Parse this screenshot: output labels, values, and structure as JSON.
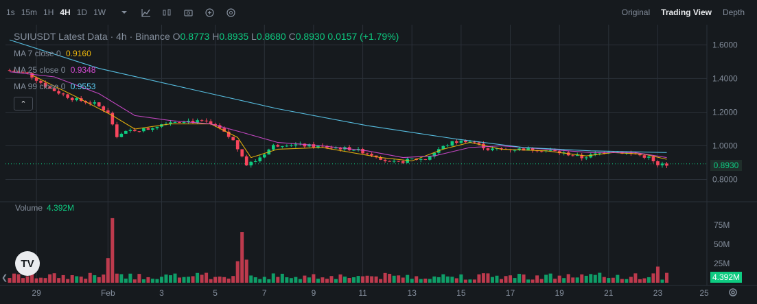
{
  "toolbar": {
    "timeframes": [
      "1s",
      "15m",
      "1H",
      "4H",
      "1D",
      "1W"
    ],
    "active_timeframe": "4H",
    "icons": [
      "chevron-down-icon",
      "indicators-icon",
      "bar-chart-icon",
      "camera-icon",
      "plus-circle-icon",
      "settings-icon"
    ]
  },
  "view_tabs": {
    "original": "Original",
    "trading_view": "Trading View",
    "depth": "Depth",
    "active": "Trading View"
  },
  "legend": {
    "title": "SUIUSDT Latest Data · 4h · Binance",
    "ohlc": [
      {
        "k": "O",
        "v": "0.8773"
      },
      {
        "k": "H",
        "v": "0.8935"
      },
      {
        "k": "L",
        "v": "0.8680"
      },
      {
        "k": "C",
        "v": "0.8930"
      },
      {
        "k": "",
        "v": "0.0157 (+1.79%)"
      }
    ],
    "ma": [
      {
        "label": "MA 7 close 0",
        "value": "0.9160",
        "color": "#f0b90b"
      },
      {
        "label": "MA 25 close 0",
        "value": "0.9348",
        "color": "#d54bd3"
      },
      {
        "label": "MA 99 close 0",
        "value": "0.9553",
        "color": "#5ed0f6"
      }
    ],
    "collapse_glyph": "⌃"
  },
  "volume_legend": {
    "label": "Volume",
    "value": "4.392M"
  },
  "price_tag": "0.8930",
  "volume_tag": "4.392M",
  "colors": {
    "up": "#0ecb81",
    "down": "#f6465d",
    "bg": "#161a1e",
    "grid": "#2b3139"
  },
  "chart_data": {
    "type": "candlestick",
    "symbol": "SUIUSDT",
    "interval": "4h",
    "exchange": "Binance",
    "price_axis": {
      "labels": [
        "1.6000",
        "1.4000",
        "1.2000",
        "1.0000",
        "0.8000"
      ],
      "range": [
        0.7,
        1.72
      ],
      "current": 0.893
    },
    "volume_axis": {
      "labels": [
        "75M",
        "50M",
        "25M"
      ],
      "range": [
        0,
        100
      ]
    },
    "x_labels": [
      "29",
      "Feb",
      "3",
      "5",
      "7",
      "9",
      "11",
      "13",
      "15",
      "17",
      "19",
      "21",
      "23",
      "25"
    ],
    "price_path": [
      [
        0,
        1.45
      ],
      [
        5,
        1.43
      ],
      [
        10,
        1.34
      ],
      [
        15,
        1.28
      ],
      [
        20,
        1.25
      ],
      [
        23,
        1.2
      ],
      [
        25,
        1.06
      ],
      [
        28,
        1.09
      ],
      [
        32,
        1.1
      ],
      [
        36,
        1.14
      ],
      [
        40,
        1.15
      ],
      [
        45,
        1.14
      ],
      [
        48,
        1.1
      ],
      [
        51,
        1.03
      ],
      [
        54,
        0.89
      ],
      [
        56,
        0.91
      ],
      [
        60,
        1.0
      ],
      [
        63,
        1.01
      ],
      [
        68,
        1.0
      ],
      [
        73,
        0.99
      ],
      [
        78,
        0.98
      ],
      [
        83,
        0.94
      ],
      [
        86,
        0.9
      ],
      [
        88,
        0.9
      ],
      [
        91,
        0.92
      ],
      [
        94,
        0.92
      ],
      [
        97,
        0.98
      ],
      [
        100,
        1.02
      ],
      [
        103,
        1.03
      ],
      [
        105,
        1.02
      ],
      [
        108,
        0.98
      ],
      [
        113,
        0.98
      ],
      [
        118,
        0.98
      ],
      [
        122,
        0.97
      ],
      [
        126,
        0.95
      ],
      [
        129,
        0.93
      ],
      [
        132,
        0.95
      ],
      [
        135,
        0.97
      ],
      [
        138,
        0.96
      ],
      [
        141,
        0.95
      ],
      [
        144,
        0.93
      ],
      [
        146,
        0.88
      ],
      [
        147,
        0.89
      ]
    ],
    "ma_series": [
      {
        "name": "MA 7",
        "color": "#f0b90b",
        "points": [
          [
            5,
            1.42
          ],
          [
            15,
            1.29
          ],
          [
            23,
            1.18
          ],
          [
            28,
            1.1
          ],
          [
            36,
            1.13
          ],
          [
            45,
            1.13
          ],
          [
            51,
            1.05
          ],
          [
            54,
            0.93
          ],
          [
            60,
            0.98
          ],
          [
            70,
            0.99
          ],
          [
            83,
            0.93
          ],
          [
            90,
            0.91
          ],
          [
            97,
            0.98
          ],
          [
            103,
            1.02
          ],
          [
            110,
            0.98
          ],
          [
            120,
            0.97
          ],
          [
            129,
            0.94
          ],
          [
            135,
            0.96
          ],
          [
            142,
            0.95
          ],
          [
            147,
            0.92
          ]
        ]
      },
      {
        "name": "MA 25",
        "color": "#d54bd3",
        "points": [
          [
            0,
            1.44
          ],
          [
            10,
            1.41
          ],
          [
            20,
            1.31
          ],
          [
            28,
            1.18
          ],
          [
            36,
            1.15
          ],
          [
            45,
            1.13
          ],
          [
            52,
            1.08
          ],
          [
            60,
            1.02
          ],
          [
            70,
            1.0
          ],
          [
            80,
            0.97
          ],
          [
            88,
            0.93
          ],
          [
            95,
            0.94
          ],
          [
            103,
            0.99
          ],
          [
            110,
            1.0
          ],
          [
            120,
            0.98
          ],
          [
            130,
            0.96
          ],
          [
            140,
            0.96
          ],
          [
            147,
            0.93
          ]
        ]
      },
      {
        "name": "MA 99",
        "color": "#5ed0f6",
        "points": [
          [
            0,
            1.63
          ],
          [
            20,
            1.46
          ],
          [
            40,
            1.34
          ],
          [
            60,
            1.22
          ],
          [
            80,
            1.12
          ],
          [
            100,
            1.04
          ],
          [
            115,
            0.99
          ],
          [
            130,
            0.97
          ],
          [
            147,
            0.96
          ]
        ]
      }
    ],
    "volume_spikes": [
      {
        "i": 23,
        "v": 84
      },
      {
        "i": 22,
        "v": 32
      },
      {
        "i": 52,
        "v": 66
      },
      {
        "i": 51,
        "v": 28
      },
      {
        "i": 53,
        "v": 30
      },
      {
        "i": 145,
        "v": 21
      }
    ]
  }
}
